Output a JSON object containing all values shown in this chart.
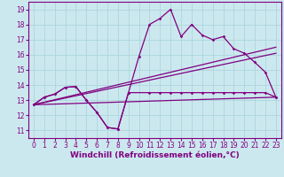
{
  "bg_color": "#cce8ef",
  "line_color": "#800080",
  "grid_color": "#b0d8e0",
  "xlabel": "Windchill (Refroidissement éolien,°C)",
  "xlabel_fontsize": 6.5,
  "tick_fontsize": 5.5,
  "xlim": [
    -0.5,
    23.5
  ],
  "ylim": [
    10.5,
    19.5
  ],
  "yticks": [
    11,
    12,
    13,
    14,
    15,
    16,
    17,
    18,
    19
  ],
  "xticks": [
    0,
    1,
    2,
    3,
    4,
    5,
    6,
    7,
    8,
    9,
    10,
    11,
    12,
    13,
    14,
    15,
    16,
    17,
    18,
    19,
    20,
    21,
    22,
    23
  ],
  "curve_main_x": [
    0,
    1,
    2,
    3,
    4,
    5,
    6,
    7,
    8,
    9,
    10,
    11,
    12,
    13,
    14,
    15,
    16,
    17,
    18,
    19,
    20,
    21,
    22,
    23
  ],
  "curve_main_y": [
    12.7,
    13.2,
    13.4,
    13.85,
    13.9,
    13.0,
    12.2,
    11.2,
    11.1,
    13.5,
    15.9,
    18.0,
    18.4,
    19.0,
    17.2,
    18.0,
    17.3,
    17.0,
    17.2,
    16.4,
    16.1,
    15.5,
    14.85,
    13.2
  ],
  "curve_dip_x": [
    0,
    1,
    2,
    3,
    4,
    5,
    6,
    7,
    8,
    9,
    11,
    12,
    13,
    14,
    15,
    16,
    17,
    18,
    19,
    20,
    21,
    22,
    23
  ],
  "curve_dip_y": [
    12.7,
    13.2,
    13.4,
    13.85,
    13.9,
    13.0,
    12.2,
    11.2,
    11.1,
    13.5,
    13.5,
    13.5,
    13.5,
    13.5,
    13.5,
    13.5,
    13.5,
    13.5,
    13.5,
    13.5,
    13.5,
    13.5,
    13.2
  ],
  "line1_x": [
    0,
    23
  ],
  "line1_y": [
    12.7,
    16.5
  ],
  "line2_x": [
    0,
    23
  ],
  "line2_y": [
    12.7,
    16.1
  ],
  "line3_x": [
    0,
    23
  ],
  "line3_y": [
    12.7,
    13.2
  ]
}
